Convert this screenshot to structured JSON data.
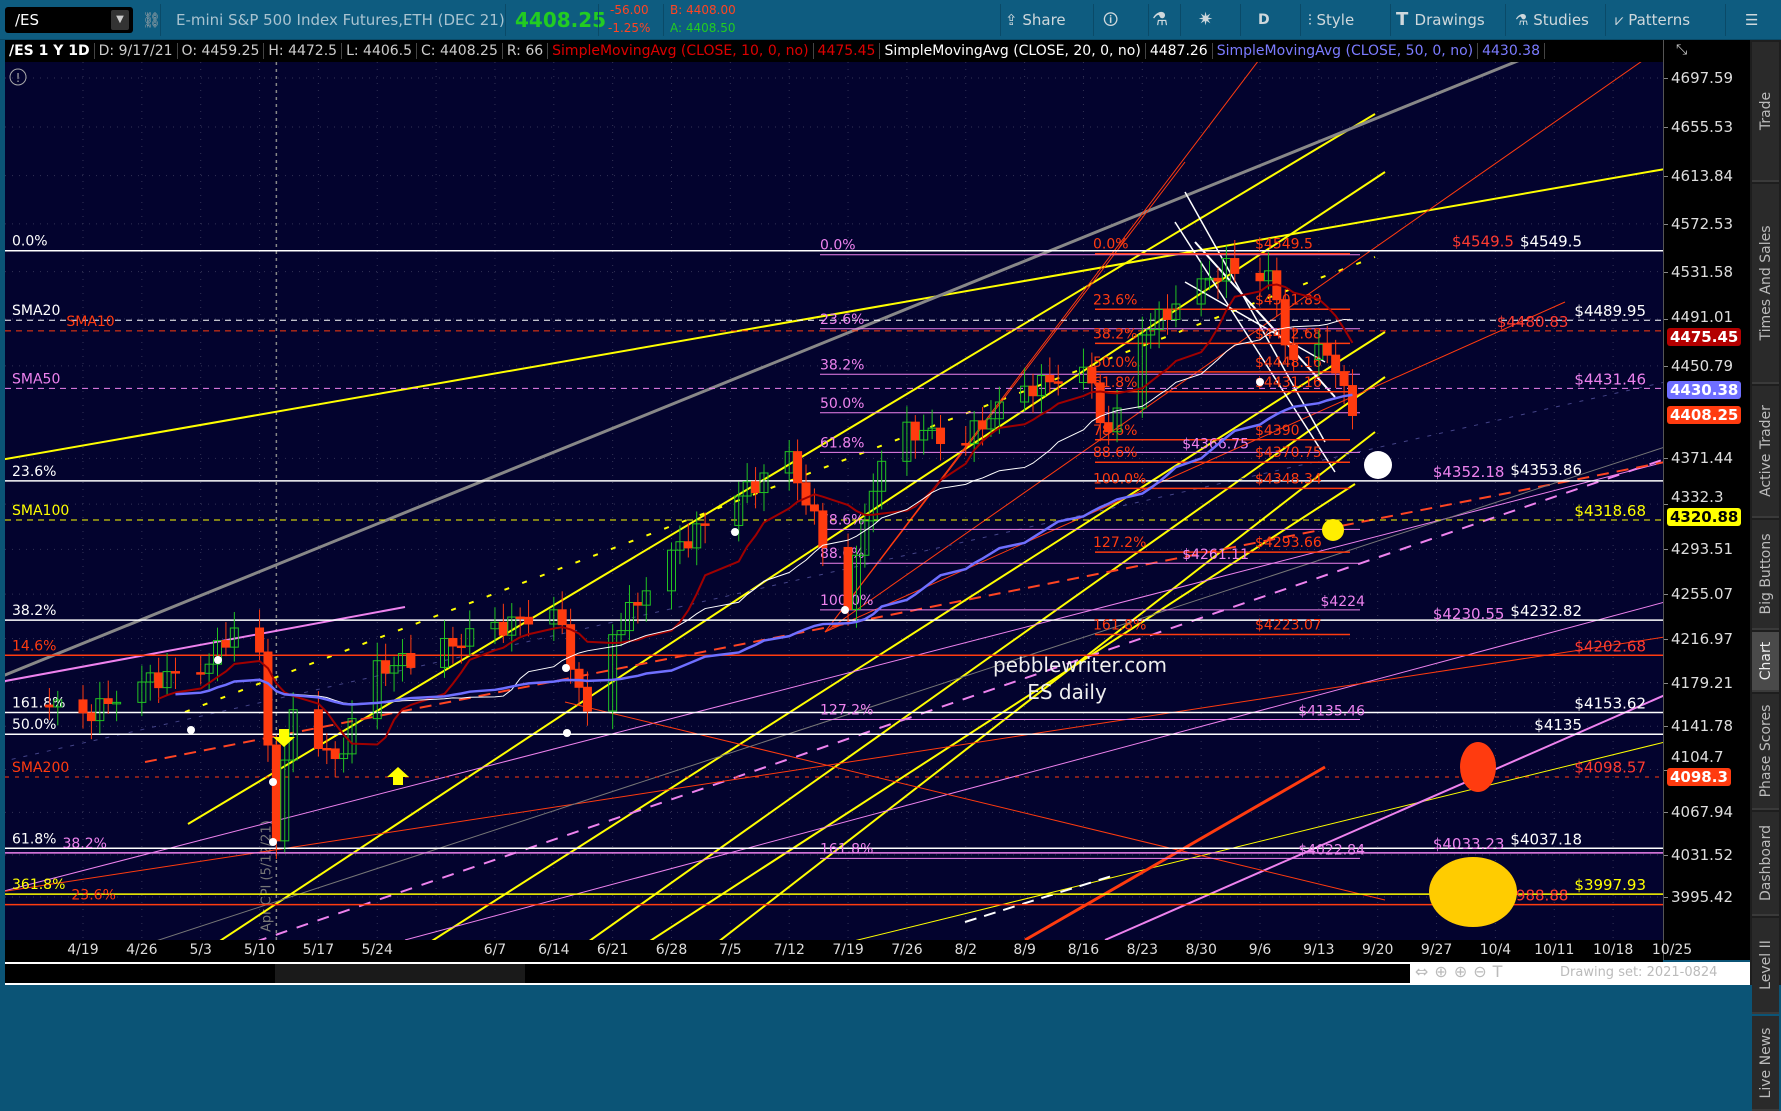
{
  "toolbar": {
    "symbol": "/ES",
    "description": "E-mini S&P 500 Index Futures,ETH (DEC 21)",
    "last": "4408.25",
    "change": "-56.00",
    "change_pct": "-1.25%",
    "bid": "B: 4408.00",
    "ask": "A: 4408.50",
    "share": "Share",
    "period": "D",
    "style": "Style",
    "drawings": "Drawings",
    "studies": "Studies",
    "patterns": "Patterns"
  },
  "info": {
    "title": "/ES 1 Y 1D",
    "date": "D: 9/17/21",
    "open": "O: 4459.25",
    "high": "H: 4472.5",
    "low": "L: 4406.5",
    "close": "C: 4408.25",
    "range": "R: 66",
    "sma10": "SimpleMovingAvg (CLOSE, 10, 0, no)",
    "sma10_val": "4475.45",
    "sma20": "SimpleMovingAvg (CLOSE, 20, 0, no)",
    "sma20_val": "4487.26",
    "sma50": "SimpleMovingAvg (CLOSE, 50, 0, no)",
    "sma50_val": "4430.38"
  },
  "colors": {
    "up": "#22c322",
    "down": "#ff3b0f",
    "sma10": "#a00000",
    "sma20": "#ffffff",
    "sma50": "#6f6fff",
    "bg": "#03032e",
    "fib_pink": "#ee82ee",
    "yellow": "#ffff00"
  },
  "price_axis": {
    "ticks": [
      "4697.59",
      "4655.53",
      "4613.84",
      "4572.53",
      "4531.58",
      "4491.01",
      "4450.79",
      "4371.44",
      "4332.3",
      "4293.51",
      "4255.07",
      "4216.97",
      "4179.21",
      "4141.78",
      "4104.7",
      "4067.94",
      "4031.52",
      "3995.42"
    ],
    "badges": [
      {
        "text": "4475.45",
        "color": "#b30000"
      },
      {
        "text": "4430.38",
        "color": "#6f6fff"
      },
      {
        "text": "4408.25",
        "color": "#ff3b0f"
      },
      {
        "text": "4320.88",
        "color": "#ffff00"
      },
      {
        "text": "4098.3",
        "color": "#ff3b0f"
      }
    ]
  },
  "date_axis": [
    "4/19",
    "4/26",
    "5/3",
    "5/10",
    "5/17",
    "5/24",
    "6/7",
    "6/14",
    "6/21",
    "6/28",
    "7/5",
    "7/12",
    "7/19",
    "7/26",
    "8/2",
    "8/9",
    "8/16",
    "8/23",
    "8/30",
    "9/6",
    "9/13",
    "9/20",
    "9/27",
    "10/4",
    "10/11",
    "10/18",
    "10/25"
  ],
  "price_anchors": [
    [
      "2021-04-15",
      4160
    ],
    [
      "2021-04-19",
      4150
    ],
    [
      "2021-04-26",
      4180
    ],
    [
      "2021-05-03",
      4190
    ],
    [
      "2021-05-07",
      4225
    ],
    [
      "2021-05-10",
      4200
    ],
    [
      "2021-05-12",
      4050
    ],
    [
      "2021-05-14",
      4160
    ],
    [
      "2021-05-19",
      4110
    ],
    [
      "2021-05-24",
      4190
    ],
    [
      "2021-06-07",
      4225
    ],
    [
      "2021-06-14",
      4245
    ],
    [
      "2021-06-18",
      4150
    ],
    [
      "2021-06-21",
      4220
    ],
    [
      "2021-06-28",
      4290
    ],
    [
      "2021-07-06",
      4340
    ],
    [
      "2021-07-12",
      4370
    ],
    [
      "2021-07-19",
      4250
    ],
    [
      "2021-07-22",
      4350
    ],
    [
      "2021-07-26",
      4395
    ],
    [
      "2021-08-02",
      4390
    ],
    [
      "2021-08-09",
      4430
    ],
    [
      "2021-08-16",
      4450
    ],
    [
      "2021-08-19",
      4390
    ],
    [
      "2021-08-23",
      4480
    ],
    [
      "2021-08-30",
      4520
    ],
    [
      "2021-09-02",
      4535
    ],
    [
      "2021-09-07",
      4530
    ],
    [
      "2021-09-10",
      4450
    ],
    [
      "2021-09-14",
      4465
    ],
    [
      "2021-09-17",
      4408.25
    ]
  ],
  "left_levels": [
    {
      "label": "0.0%",
      "price": 4549.5,
      "color": "#ffffff",
      "dash": ""
    },
    {
      "label": "SMA20",
      "price": 4489.95,
      "color": "#ffffff",
      "dash": "6,5"
    },
    {
      "label": "SMA10",
      "price": 4480.83,
      "color": "#ff3b0f",
      "dash": "6,5"
    },
    {
      "label": "SMA50",
      "price": 4431.46,
      "color": "#ee82ee",
      "dash": "6,5"
    },
    {
      "label": "23.6%",
      "price": 4352.18,
      "color": "#ffffff",
      "dash": ""
    },
    {
      "label": "SMA100",
      "price": 4318.68,
      "color": "#ffff00",
      "dash": "6,5"
    },
    {
      "label": "38.2%",
      "price": 4232.82,
      "color": "#ffffff",
      "dash": ""
    },
    {
      "label": "14.6%",
      "price": 4202.68,
      "color": "#ff3b0f",
      "dash": ""
    },
    {
      "label": "161.8%",
      "price": 4153.62,
      "color": "#ffffff",
      "dash": ""
    },
    {
      "label": "50.0%",
      "price": 4135,
      "color": "#ffffff",
      "dash": ""
    },
    {
      "label": "SMA200",
      "price": 4098.3,
      "color": "#ff3b0f",
      "dash": "4,6"
    },
    {
      "label": "61.8%",
      "price": 4037.18,
      "color": "#ffffff",
      "dash": ""
    },
    {
      "label": "38.2%",
      "price": 4033.23,
      "color": "#ee82ee",
      "dash": ""
    },
    {
      "label": "361.8%",
      "price": 3997.93,
      "color": "#ffff00",
      "dash": ""
    },
    {
      "label": "23.6%",
      "price": 3988.88,
      "color": "#ff3b0f",
      "dash": ""
    }
  ],
  "right_labels": [
    {
      "text": "$4549.5",
      "price": 4549.5,
      "color": "#ffffff",
      "col": 1
    },
    {
      "text": "$4549.5",
      "price": 4549.5,
      "color": "#ff3b30",
      "col": 2
    },
    {
      "text": "$4489.95",
      "price": 4489.95,
      "color": "#ffffff",
      "col": 2
    },
    {
      "text": "$4480.83",
      "price": 4480.83,
      "color": "#ff3b30",
      "col": 2
    },
    {
      "text": "$4431.46",
      "price": 4431.46,
      "color": "#ee82ee",
      "col": 2
    },
    {
      "text": "$4353.86",
      "price": 4353.86,
      "color": "#ffffff",
      "col": 1
    },
    {
      "text": "$4352.18",
      "price": 4352.18,
      "color": "#ee82ee",
      "col": 2
    },
    {
      "text": "$4318.68",
      "price": 4318.68,
      "color": "#ffff00",
      "col": 2
    },
    {
      "text": "$4232.82",
      "price": 4232.82,
      "color": "#ffffff",
      "col": 1
    },
    {
      "text": "$4230.55",
      "price": 4230.55,
      "color": "#ee82ee",
      "col": 2
    },
    {
      "text": "$4202.68",
      "price": 4202.68,
      "color": "#ff3b30",
      "col": 2
    },
    {
      "text": "$4153.62",
      "price": 4153.62,
      "color": "#ffffff",
      "col": 2
    },
    {
      "text": "$4135",
      "price": 4135,
      "color": "#ffffff",
      "col": 1
    },
    {
      "text": "$4098.57",
      "price": 4098.57,
      "color": "#ff3b30",
      "col": 2
    },
    {
      "text": "$4037.18",
      "price": 4037.18,
      "color": "#ffffff",
      "col": 1
    },
    {
      "text": "$4033.23",
      "price": 4033.23,
      "color": "#ee82ee",
      "col": 2
    },
    {
      "text": "$3997.93",
      "price": 3997.93,
      "color": "#ffff00",
      "col": 2
    },
    {
      "text": "$3988.88",
      "price": 3988.88,
      "color": "#ff3b30",
      "col": 2
    }
  ],
  "fib_mid": [
    {
      "label": "0.0%",
      "price": 4549.5
    },
    {
      "label": "23.6%",
      "price": 4486
    },
    {
      "label": "38.2%",
      "price": 4447
    },
    {
      "label": "50.0%",
      "price": 4414
    },
    {
      "label": "61.8%",
      "price": 4380
    },
    {
      "label": "78.6%",
      "price": 4314
    },
    {
      "label": "88.6%",
      "price": 4285
    },
    {
      "label": "100.0%",
      "price": 4245
    },
    {
      "label": "127.2%",
      "price": 4151
    },
    {
      "label": "161.8%",
      "price": 4032
    }
  ],
  "fib_mid_values": [
    {
      "text": "$4366.75",
      "price": 4380
    },
    {
      "text": "$4261.11",
      "price": 4285
    },
    {
      "text": "$4224",
      "price": 4245
    },
    {
      "text": "$4135.46",
      "price": 4151
    },
    {
      "text": "$4022.84",
      "price": 4032
    }
  ],
  "fib_red": [
    {
      "label": "0.0%",
      "value": "$4549.5",
      "price": 4549.5
    },
    {
      "label": "23.6%",
      "value": "$4501.89",
      "price": 4501.89
    },
    {
      "label": "38.2%",
      "value": "$4472.68",
      "price": 4472.68
    },
    {
      "label": "50.0%",
      "value": "$4448.16",
      "price": 4448.16
    },
    {
      "label": "61.8%",
      "value": "$4431.16",
      "price": 4431.16
    },
    {
      "label": "78.6%",
      "value": "$4390",
      "price": 4390
    },
    {
      "label": "88.6%",
      "value": "$4370.75",
      "price": 4370.75
    },
    {
      "label": "100.0%",
      "value": "$4348.34",
      "price": 4348.34
    },
    {
      "label": "127.2%",
      "value": "$4293.66",
      "price": 4293.66
    },
    {
      "label": "161.8%",
      "value": "$4223.07",
      "price": 4223.07
    }
  ],
  "annotations": {
    "watermark1": "pebblewriter.com",
    "watermark2": "ES daily",
    "event": "Apr CPI (5/12/21)"
  },
  "sidebar": [
    "Trade",
    "Times And Sales",
    "Active Trader",
    "Big Buttons",
    "Chart",
    "Phase Scores",
    "Dashboard",
    "Level II",
    "Live News"
  ],
  "bottom": {
    "drawing_set": "Drawing set: 2021-0824"
  }
}
